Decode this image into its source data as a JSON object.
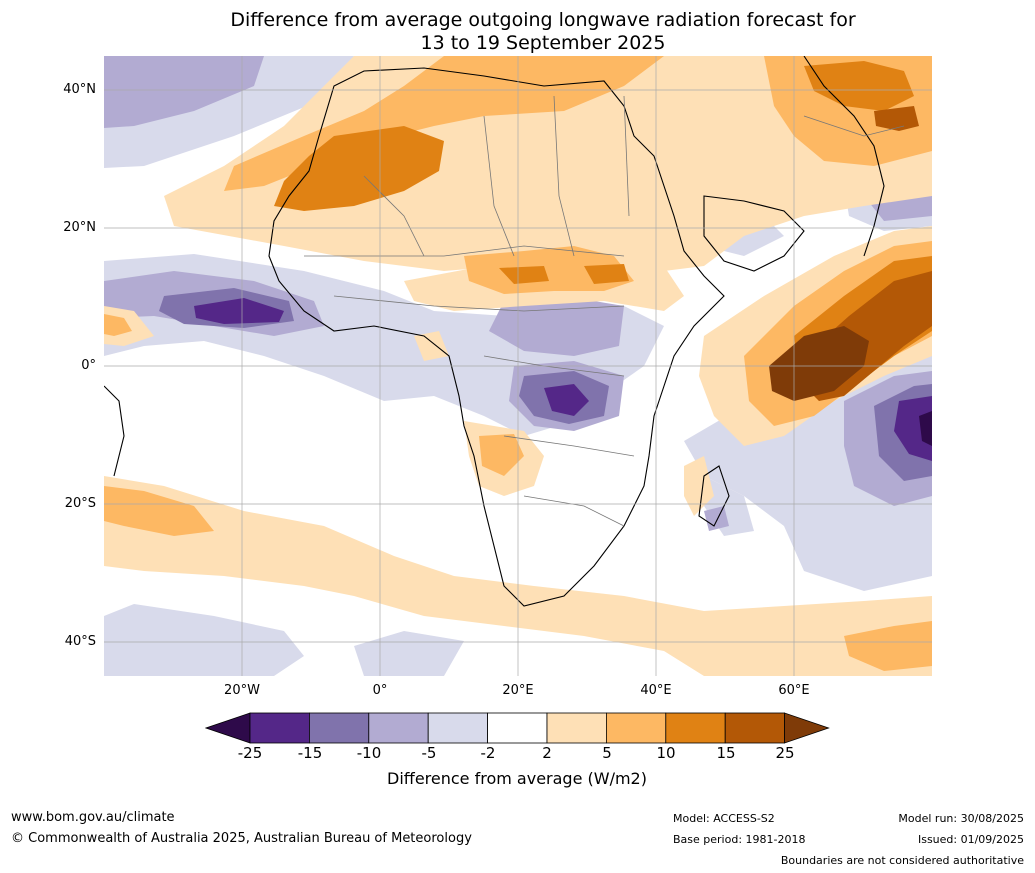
{
  "header": {
    "title_line1": "Difference from average outgoing longwave radiation forecast for",
    "title_line2": "13 to 19 September 2025"
  },
  "map": {
    "lat_labels": [
      "40°N",
      "20°N",
      "0°",
      "20°S",
      "40°S"
    ],
    "lon_labels": [
      "20°W",
      "0°",
      "20°E",
      "40°E",
      "60°E"
    ]
  },
  "legend": {
    "title": "Difference from average (W/m2)",
    "ticks": [
      "-25",
      "-15",
      "-10",
      "-5",
      "-2",
      "2",
      "5",
      "10",
      "15",
      "25"
    ],
    "colors": [
      "#2e0a4a",
      "#542788",
      "#8073ac",
      "#b2abd2",
      "#d8daeb",
      "#ffffff",
      "#fee0b6",
      "#fdb863",
      "#e08214",
      "#b35806",
      "#7f3b08"
    ]
  },
  "footer": {
    "website": "www.bom.gov.au/climate",
    "copyright": "© Commonwealth of Australia 2025, Australian Bureau of Meteorology",
    "model": "Model: ACCESS-S2",
    "base_period": "Base period: 1981-2018",
    "model_run": "Model run: 30/08/2025",
    "issued": "Issued: 01/09/2025",
    "disclaimer": "Boundaries are not considered authoritative"
  }
}
